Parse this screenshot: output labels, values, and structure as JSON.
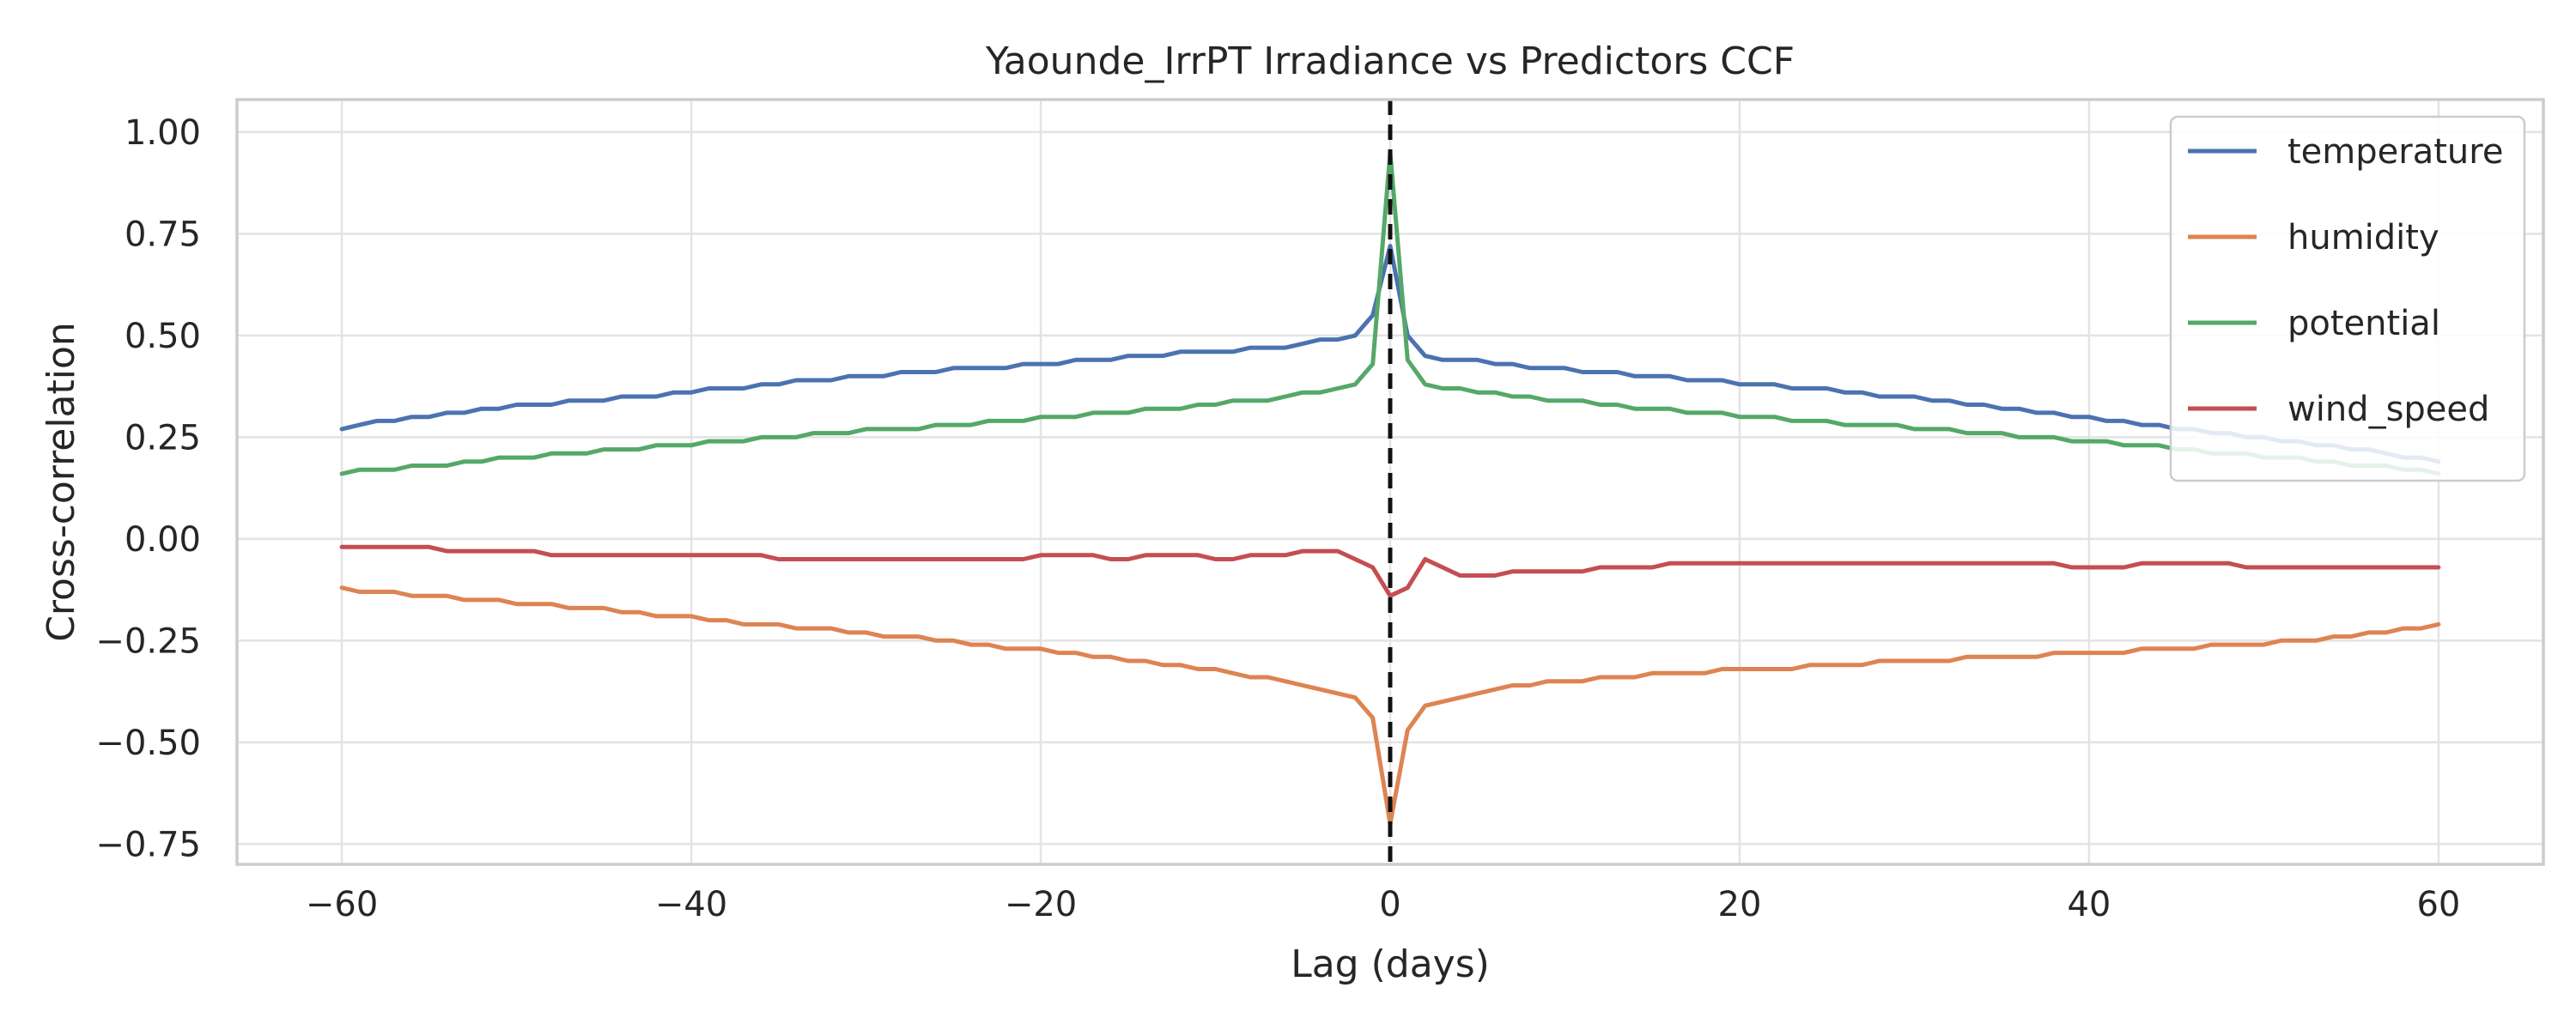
{
  "chart_data": {
    "type": "line",
    "title": "Yaounde_IrrPT Irradiance vs Predictors CCF",
    "xlabel": "Lag (days)",
    "ylabel": "Cross-correlation",
    "xlim": [
      -66,
      66
    ],
    "ylim": [
      -0.8,
      1.08
    ],
    "xticks": [
      -60,
      -40,
      -20,
      0,
      20,
      40,
      60
    ],
    "xtick_labels": [
      "−60",
      "−40",
      "−20",
      "0",
      "20",
      "40",
      "60"
    ],
    "yticks": [
      -0.75,
      -0.5,
      -0.25,
      0.0,
      0.25,
      0.5,
      0.75,
      1.0
    ],
    "ytick_labels": [
      "−0.75",
      "−0.50",
      "−0.25",
      "0.00",
      "0.25",
      "0.50",
      "0.75",
      "1.00"
    ],
    "grid": true,
    "legend_position": "top-right",
    "vline": {
      "x": 0,
      "style": "dashed",
      "color": "#111111"
    },
    "x": {
      "start": -60,
      "end": 60,
      "step": 1
    },
    "series": [
      {
        "name": "temperature",
        "color": "#4c72b0",
        "values": [
          0.27,
          0.28,
          0.29,
          0.29,
          0.3,
          0.3,
          0.31,
          0.31,
          0.32,
          0.32,
          0.33,
          0.33,
          0.33,
          0.34,
          0.34,
          0.34,
          0.35,
          0.35,
          0.35,
          0.36,
          0.36,
          0.37,
          0.37,
          0.37,
          0.38,
          0.38,
          0.39,
          0.39,
          0.39,
          0.4,
          0.4,
          0.4,
          0.41,
          0.41,
          0.41,
          0.42,
          0.42,
          0.42,
          0.42,
          0.43,
          0.43,
          0.43,
          0.44,
          0.44,
          0.44,
          0.45,
          0.45,
          0.45,
          0.46,
          0.46,
          0.46,
          0.46,
          0.47,
          0.47,
          0.47,
          0.48,
          0.49,
          0.49,
          0.5,
          0.55,
          0.72,
          0.5,
          0.45,
          0.44,
          0.44,
          0.44,
          0.43,
          0.43,
          0.42,
          0.42,
          0.42,
          0.41,
          0.41,
          0.41,
          0.4,
          0.4,
          0.4,
          0.39,
          0.39,
          0.39,
          0.38,
          0.38,
          0.38,
          0.37,
          0.37,
          0.37,
          0.36,
          0.36,
          0.35,
          0.35,
          0.35,
          0.34,
          0.34,
          0.33,
          0.33,
          0.32,
          0.32,
          0.31,
          0.31,
          0.3,
          0.3,
          0.29,
          0.29,
          0.28,
          0.28,
          0.27,
          0.27,
          0.26,
          0.26,
          0.25,
          0.25,
          0.24,
          0.24,
          0.23,
          0.23,
          0.22,
          0.22,
          0.21,
          0.2,
          0.2,
          0.19
        ]
      },
      {
        "name": "humidity",
        "color": "#dd8452",
        "values": [
          -0.12,
          -0.13,
          -0.13,
          -0.13,
          -0.14,
          -0.14,
          -0.14,
          -0.15,
          -0.15,
          -0.15,
          -0.16,
          -0.16,
          -0.16,
          -0.17,
          -0.17,
          -0.17,
          -0.18,
          -0.18,
          -0.19,
          -0.19,
          -0.19,
          -0.2,
          -0.2,
          -0.21,
          -0.21,
          -0.21,
          -0.22,
          -0.22,
          -0.22,
          -0.23,
          -0.23,
          -0.24,
          -0.24,
          -0.24,
          -0.25,
          -0.25,
          -0.26,
          -0.26,
          -0.27,
          -0.27,
          -0.27,
          -0.28,
          -0.28,
          -0.29,
          -0.29,
          -0.3,
          -0.3,
          -0.31,
          -0.31,
          -0.32,
          -0.32,
          -0.33,
          -0.34,
          -0.34,
          -0.35,
          -0.36,
          -0.37,
          -0.38,
          -0.39,
          -0.44,
          -0.7,
          -0.47,
          -0.41,
          -0.4,
          -0.39,
          -0.38,
          -0.37,
          -0.36,
          -0.36,
          -0.35,
          -0.35,
          -0.35,
          -0.34,
          -0.34,
          -0.34,
          -0.33,
          -0.33,
          -0.33,
          -0.33,
          -0.32,
          -0.32,
          -0.32,
          -0.32,
          -0.32,
          -0.31,
          -0.31,
          -0.31,
          -0.31,
          -0.3,
          -0.3,
          -0.3,
          -0.3,
          -0.3,
          -0.29,
          -0.29,
          -0.29,
          -0.29,
          -0.29,
          -0.28,
          -0.28,
          -0.28,
          -0.28,
          -0.28,
          -0.27,
          -0.27,
          -0.27,
          -0.27,
          -0.26,
          -0.26,
          -0.26,
          -0.26,
          -0.25,
          -0.25,
          -0.25,
          -0.24,
          -0.24,
          -0.23,
          -0.23,
          -0.22,
          -0.22,
          -0.21
        ]
      },
      {
        "name": "potential",
        "color": "#55a868",
        "values": [
          0.16,
          0.17,
          0.17,
          0.17,
          0.18,
          0.18,
          0.18,
          0.19,
          0.19,
          0.2,
          0.2,
          0.2,
          0.21,
          0.21,
          0.21,
          0.22,
          0.22,
          0.22,
          0.23,
          0.23,
          0.23,
          0.24,
          0.24,
          0.24,
          0.25,
          0.25,
          0.25,
          0.26,
          0.26,
          0.26,
          0.27,
          0.27,
          0.27,
          0.27,
          0.28,
          0.28,
          0.28,
          0.29,
          0.29,
          0.29,
          0.3,
          0.3,
          0.3,
          0.31,
          0.31,
          0.31,
          0.32,
          0.32,
          0.32,
          0.33,
          0.33,
          0.34,
          0.34,
          0.34,
          0.35,
          0.36,
          0.36,
          0.37,
          0.38,
          0.43,
          0.95,
          0.44,
          0.38,
          0.37,
          0.37,
          0.36,
          0.36,
          0.35,
          0.35,
          0.34,
          0.34,
          0.34,
          0.33,
          0.33,
          0.32,
          0.32,
          0.32,
          0.31,
          0.31,
          0.31,
          0.3,
          0.3,
          0.3,
          0.29,
          0.29,
          0.29,
          0.28,
          0.28,
          0.28,
          0.28,
          0.27,
          0.27,
          0.27,
          0.26,
          0.26,
          0.26,
          0.25,
          0.25,
          0.25,
          0.24,
          0.24,
          0.24,
          0.23,
          0.23,
          0.23,
          0.22,
          0.22,
          0.21,
          0.21,
          0.21,
          0.2,
          0.2,
          0.2,
          0.19,
          0.19,
          0.18,
          0.18,
          0.18,
          0.17,
          0.17,
          0.16
        ]
      },
      {
        "name": "wind_speed",
        "color": "#c44e52",
        "values": [
          -0.02,
          -0.02,
          -0.02,
          -0.02,
          -0.02,
          -0.02,
          -0.03,
          -0.03,
          -0.03,
          -0.03,
          -0.03,
          -0.03,
          -0.04,
          -0.04,
          -0.04,
          -0.04,
          -0.04,
          -0.04,
          -0.04,
          -0.04,
          -0.04,
          -0.04,
          -0.04,
          -0.04,
          -0.04,
          -0.05,
          -0.05,
          -0.05,
          -0.05,
          -0.05,
          -0.05,
          -0.05,
          -0.05,
          -0.05,
          -0.05,
          -0.05,
          -0.05,
          -0.05,
          -0.05,
          -0.05,
          -0.04,
          -0.04,
          -0.04,
          -0.04,
          -0.05,
          -0.05,
          -0.04,
          -0.04,
          -0.04,
          -0.04,
          -0.05,
          -0.05,
          -0.04,
          -0.04,
          -0.04,
          -0.03,
          -0.03,
          -0.03,
          -0.05,
          -0.07,
          -0.14,
          -0.12,
          -0.05,
          -0.07,
          -0.09,
          -0.09,
          -0.09,
          -0.08,
          -0.08,
          -0.08,
          -0.08,
          -0.08,
          -0.07,
          -0.07,
          -0.07,
          -0.07,
          -0.06,
          -0.06,
          -0.06,
          -0.06,
          -0.06,
          -0.06,
          -0.06,
          -0.06,
          -0.06,
          -0.06,
          -0.06,
          -0.06,
          -0.06,
          -0.06,
          -0.06,
          -0.06,
          -0.06,
          -0.06,
          -0.06,
          -0.06,
          -0.06,
          -0.06,
          -0.06,
          -0.07,
          -0.07,
          -0.07,
          -0.07,
          -0.06,
          -0.06,
          -0.06,
          -0.06,
          -0.06,
          -0.06,
          -0.07,
          -0.07,
          -0.07,
          -0.07,
          -0.07,
          -0.07,
          -0.07,
          -0.07,
          -0.07,
          -0.07,
          -0.07,
          -0.07
        ]
      }
    ]
  }
}
